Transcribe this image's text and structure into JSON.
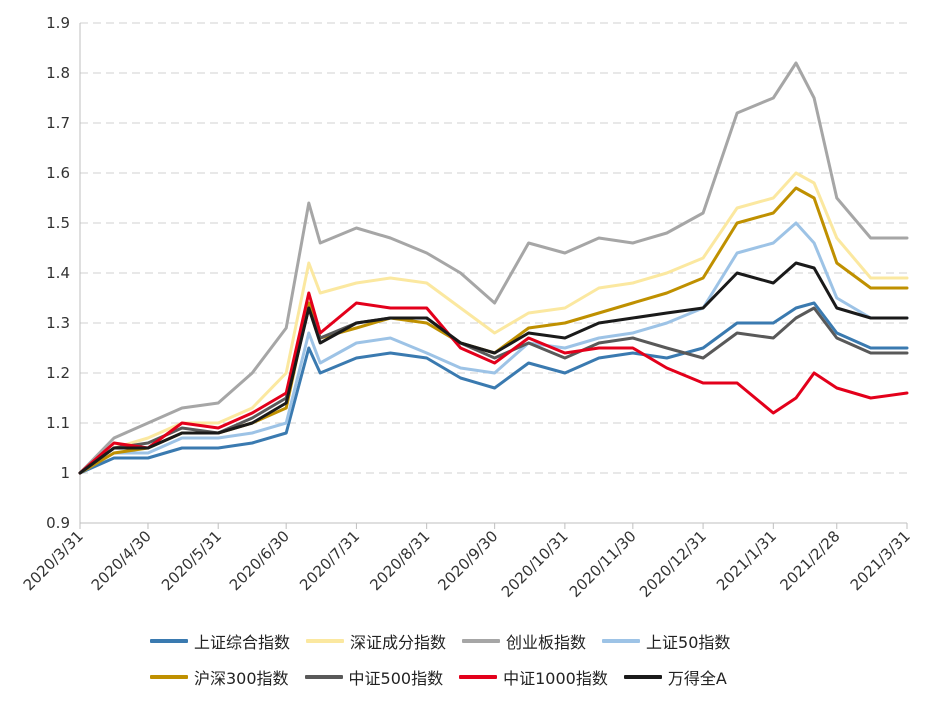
{
  "chart_data": {
    "type": "line",
    "title": "",
    "xlabel": "",
    "ylabel": "",
    "ylim": [
      0.9,
      1.9
    ],
    "yticks": [
      "0.9",
      "1",
      "1.1",
      "1.2",
      "1.3",
      "1.4",
      "1.5",
      "1.6",
      "1.7",
      "1.8",
      "1.9"
    ],
    "grid": "horizontal dashed",
    "legend_position": "bottom",
    "x": [
      "2020/3/31",
      "2020/4/15",
      "2020/4/30",
      "2020/5/15",
      "2020/5/31",
      "2020/6/15",
      "2020/6/30",
      "2020/7/10",
      "2020/7/15",
      "2020/7/31",
      "2020/8/15",
      "2020/8/31",
      "2020/9/15",
      "2020/9/30",
      "2020/10/15",
      "2020/10/31",
      "2020/11/15",
      "2020/11/30",
      "2020/12/15",
      "2020/12/31",
      "2021/1/15",
      "2021/1/31",
      "2021/2/10",
      "2021/2/18",
      "2021/2/28",
      "2021/3/15",
      "2021/3/31"
    ],
    "xtick_labels": [
      "2020/3/31",
      "2020/4/30",
      "2020/5/31",
      "2020/6/30",
      "2020/7/31",
      "2020/8/31",
      "2020/9/30",
      "2020/10/31",
      "2020/11/30",
      "2020/12/31",
      "2021/1/31",
      "2021/2/28",
      "2021/3/31"
    ],
    "series": [
      {
        "name": "上证综合指数",
        "color": "#3a7ab0",
        "values": [
          1.0,
          1.03,
          1.03,
          1.05,
          1.05,
          1.06,
          1.08,
          1.25,
          1.2,
          1.23,
          1.24,
          1.23,
          1.19,
          1.17,
          1.22,
          1.2,
          1.23,
          1.24,
          1.23,
          1.25,
          1.3,
          1.3,
          1.33,
          1.34,
          1.28,
          1.25,
          1.25
        ]
      },
      {
        "name": "深证成分指数",
        "color": "#fbe8a0",
        "values": [
          1.0,
          1.05,
          1.07,
          1.1,
          1.1,
          1.13,
          1.2,
          1.42,
          1.36,
          1.38,
          1.39,
          1.38,
          1.33,
          1.28,
          1.32,
          1.33,
          1.37,
          1.38,
          1.4,
          1.43,
          1.53,
          1.55,
          1.6,
          1.58,
          1.47,
          1.39,
          1.39
        ]
      },
      {
        "name": "创业板指数",
        "color": "#a6a6a6",
        "values": [
          1.0,
          1.07,
          1.1,
          1.13,
          1.14,
          1.2,
          1.29,
          1.54,
          1.46,
          1.49,
          1.47,
          1.44,
          1.4,
          1.34,
          1.46,
          1.44,
          1.47,
          1.46,
          1.48,
          1.52,
          1.72,
          1.75,
          1.82,
          1.75,
          1.55,
          1.47,
          1.47
        ]
      },
      {
        "name": "上证50指数",
        "color": "#9dc3e6",
        "values": [
          1.0,
          1.04,
          1.04,
          1.07,
          1.07,
          1.08,
          1.1,
          1.28,
          1.22,
          1.26,
          1.27,
          1.24,
          1.21,
          1.2,
          1.26,
          1.25,
          1.27,
          1.28,
          1.3,
          1.33,
          1.44,
          1.46,
          1.5,
          1.46,
          1.35,
          1.31,
          1.31
        ]
      },
      {
        "name": "沪深300指数",
        "color": "#bf9000",
        "values": [
          1.0,
          1.04,
          1.05,
          1.08,
          1.08,
          1.1,
          1.13,
          1.34,
          1.27,
          1.29,
          1.31,
          1.3,
          1.26,
          1.24,
          1.29,
          1.3,
          1.32,
          1.34,
          1.36,
          1.39,
          1.5,
          1.52,
          1.57,
          1.55,
          1.42,
          1.37,
          1.37
        ]
      },
      {
        "name": "中证500指数",
        "color": "#595959",
        "values": [
          1.0,
          1.05,
          1.06,
          1.09,
          1.08,
          1.11,
          1.15,
          1.33,
          1.27,
          1.3,
          1.31,
          1.31,
          1.26,
          1.23,
          1.26,
          1.23,
          1.26,
          1.27,
          1.25,
          1.23,
          1.28,
          1.27,
          1.31,
          1.33,
          1.27,
          1.24,
          1.24
        ]
      },
      {
        "name": "中证1000指数",
        "color": "#e3001b",
        "values": [
          1.0,
          1.06,
          1.05,
          1.1,
          1.09,
          1.12,
          1.16,
          1.36,
          1.28,
          1.34,
          1.33,
          1.33,
          1.25,
          1.22,
          1.27,
          1.24,
          1.25,
          1.25,
          1.21,
          1.18,
          1.18,
          1.12,
          1.15,
          1.2,
          1.17,
          1.15,
          1.16
        ]
      },
      {
        "name": "万得全A",
        "color": "#1a1a1a",
        "values": [
          1.0,
          1.05,
          1.05,
          1.08,
          1.08,
          1.1,
          1.14,
          1.33,
          1.26,
          1.3,
          1.31,
          1.31,
          1.26,
          1.24,
          1.28,
          1.27,
          1.3,
          1.31,
          1.32,
          1.33,
          1.4,
          1.38,
          1.42,
          1.41,
          1.33,
          1.31,
          1.31
        ]
      }
    ]
  }
}
